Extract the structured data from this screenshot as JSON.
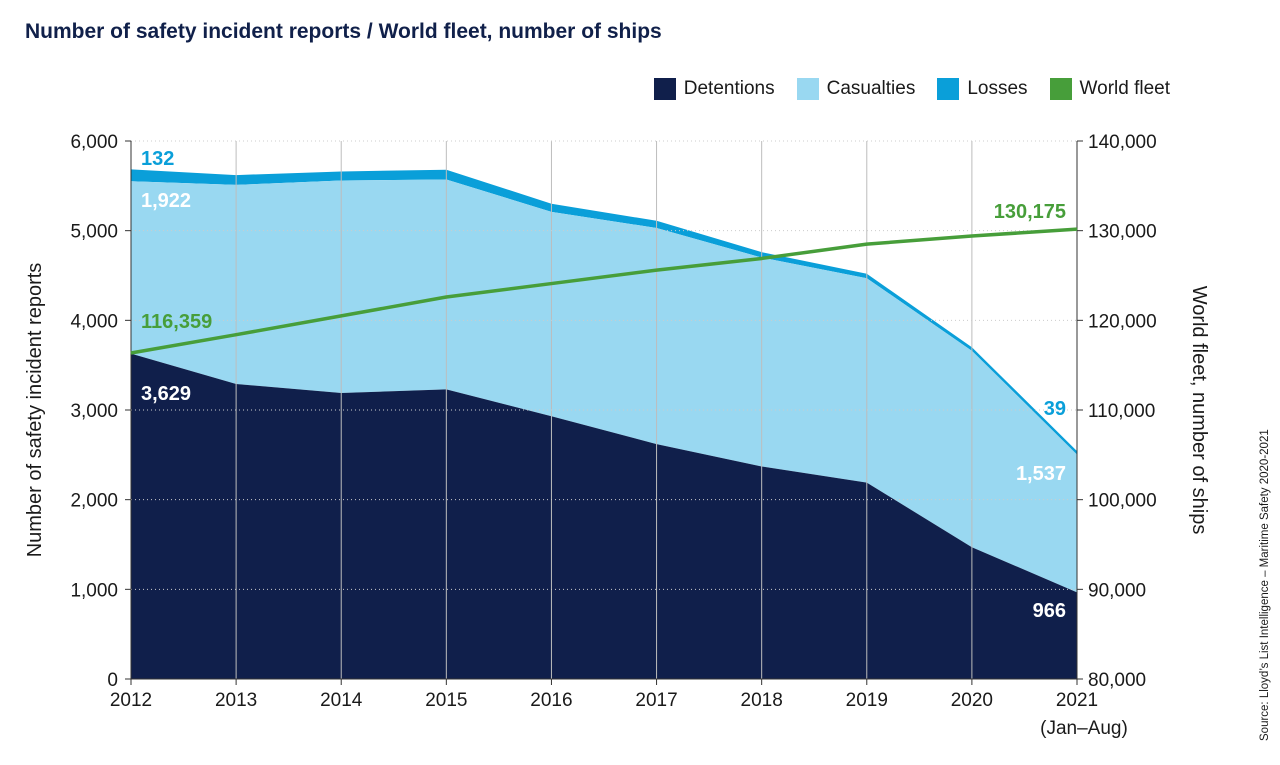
{
  "colors": {
    "detentions": "#101f4b",
    "casualties": "#99d8f1",
    "losses": "#0a9fd9",
    "fleet": "#479e3a",
    "gridline": "#bdbdbd"
  },
  "chart_data": {
    "type": "area",
    "title": "Number of safety incident reports / World fleet, number of ships",
    "categories": [
      "2012",
      "2013",
      "2014",
      "2015",
      "2016",
      "2017",
      "2018",
      "2019",
      "2020",
      "2021"
    ],
    "x_sublabel_last": "(Jan–Aug)",
    "ylabel_left": "Number of safety incident reports",
    "ylabel_right": "World fleet, number of ships",
    "ylim_left": [
      0,
      6000
    ],
    "ylim_right": [
      80000,
      140000
    ],
    "yticks_left": [
      "0",
      "1,000",
      "2,000",
      "3,000",
      "4,000",
      "5,000",
      "6,000"
    ],
    "yticks_right": [
      "80,000",
      "90,000",
      "100,000",
      "110,000",
      "120,000",
      "130,000",
      "140,000"
    ],
    "stacked": true,
    "legend_position": "top-right",
    "grid": true,
    "series": [
      {
        "name": "Detentions",
        "axis": "left",
        "values": [
          3629,
          3290,
          3190,
          3230,
          2930,
          2620,
          2370,
          2190,
          1470,
          966
        ]
      },
      {
        "name": "Casualties",
        "axis": "left",
        "values": [
          1922,
          2220,
          2370,
          2340,
          2280,
          2410,
          2330,
          2280,
          2190,
          1537
        ]
      },
      {
        "name": "Losses",
        "axis": "left",
        "values": [
          132,
          110,
          100,
          110,
          90,
          80,
          60,
          50,
          40,
          39
        ]
      },
      {
        "name": "World fleet",
        "axis": "right",
        "type": "line",
        "values": [
          116359,
          118400,
          120500,
          122600,
          124100,
          125600,
          126900,
          128500,
          129400,
          130175
        ]
      }
    ],
    "annotations": {
      "losses_first": "132",
      "casualties_first": "1,922",
      "detentions_first": "3,629",
      "fleet_first": "116,359",
      "fleet_last": "130,175",
      "losses_last": "39",
      "casualties_last": "1,537",
      "detentions_last": "966"
    },
    "source": "Source: Lloyd’s List Intelligence – Maritime Safety 2020-2021"
  }
}
